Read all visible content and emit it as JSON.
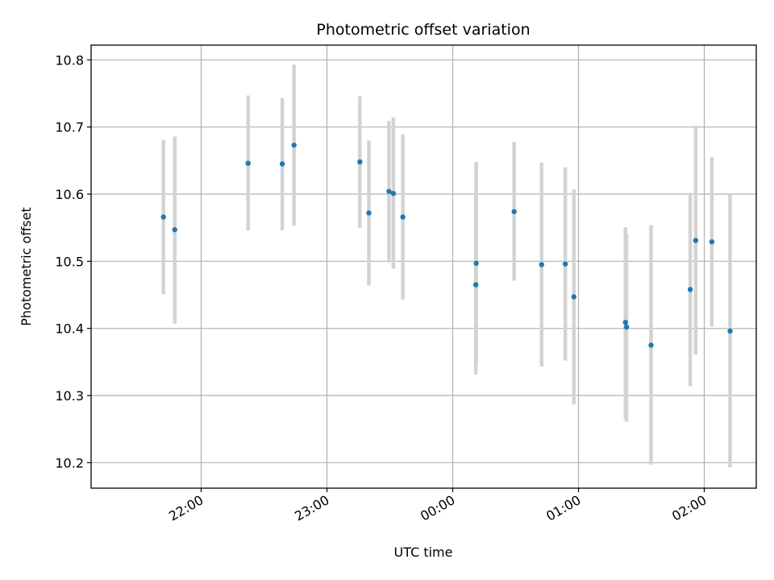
{
  "chart_data": {
    "type": "scatter",
    "title": "Photometric offset variation",
    "xlabel": "UTC time",
    "ylabel": "Photometric offset",
    "grid": true,
    "x_ticks": [
      "22:00",
      "23:00",
      "00:00",
      "01:00",
      "02:00"
    ],
    "x_tick_minutes": [
      1320,
      1380,
      1440,
      1500,
      1560
    ],
    "y_ticks": [
      "10.2",
      "10.3",
      "10.4",
      "10.5",
      "10.6",
      "10.7",
      "10.8"
    ],
    "y_tick_values": [
      10.2,
      10.3,
      10.4,
      10.5,
      10.6,
      10.7,
      10.8
    ],
    "xlim_minutes": [
      1267.5,
      1584.8
    ],
    "ylim": [
      10.162,
      10.822
    ],
    "series": [
      {
        "name": "",
        "color": "#1f77b4",
        "errorbar_color": "#d3d3d3",
        "points": [
          {
            "t": "21:42",
            "x": 1302.0,
            "y": 10.566,
            "ylo": 10.451,
            "yhi": 10.681
          },
          {
            "t": "21:47",
            "x": 1307.4,
            "y": 10.547,
            "ylo": 10.407,
            "yhi": 10.686
          },
          {
            "t": "22:22",
            "x": 1342.4,
            "y": 10.646,
            "ylo": 10.546,
            "yhi": 10.747
          },
          {
            "t": "22:39",
            "x": 1358.7,
            "y": 10.645,
            "ylo": 10.546,
            "yhi": 10.743
          },
          {
            "t": "22:44",
            "x": 1364.3,
            "y": 10.673,
            "ylo": 10.553,
            "yhi": 10.793
          },
          {
            "t": "23:16",
            "x": 1395.7,
            "y": 10.648,
            "ylo": 10.55,
            "yhi": 10.746
          },
          {
            "t": "23:20",
            "x": 1400.0,
            "y": 10.572,
            "ylo": 10.464,
            "yhi": 10.68
          },
          {
            "t": "23:30",
            "x": 1409.6,
            "y": 10.604,
            "ylo": 10.498,
            "yhi": 10.709
          },
          {
            "t": "23:32",
            "x": 1411.7,
            "y": 10.601,
            "ylo": 10.489,
            "yhi": 10.714
          },
          {
            "t": "23:36",
            "x": 1416.2,
            "y": 10.566,
            "ylo": 10.443,
            "yhi": 10.689
          },
          {
            "t": "00:11",
            "x": 1451.2,
            "y": 10.497,
            "ylo": 10.346,
            "yhi": 10.648
          },
          {
            "t": "00:11",
            "x": 1451.0,
            "y": 10.465,
            "ylo": 10.331,
            "yhi": 10.598
          },
          {
            "t": "00:29",
            "x": 1469.3,
            "y": 10.574,
            "ylo": 10.471,
            "yhi": 10.678
          },
          {
            "t": "00:42",
            "x": 1482.4,
            "y": 10.495,
            "ylo": 10.343,
            "yhi": 10.647
          },
          {
            "t": "00:54",
            "x": 1493.7,
            "y": 10.496,
            "ylo": 10.352,
            "yhi": 10.64
          },
          {
            "t": "00:58",
            "x": 1497.8,
            "y": 10.447,
            "ylo": 10.287,
            "yhi": 10.607
          },
          {
            "t": "01:22",
            "x": 1522.4,
            "y": 10.409,
            "ylo": 10.266,
            "yhi": 10.551
          },
          {
            "t": "01:23",
            "x": 1522.9,
            "y": 10.402,
            "ylo": 10.261,
            "yhi": 10.541
          },
          {
            "t": "01:35",
            "x": 1534.6,
            "y": 10.375,
            "ylo": 10.197,
            "yhi": 10.554
          },
          {
            "t": "01:53",
            "x": 1553.3,
            "y": 10.458,
            "ylo": 10.314,
            "yhi": 10.602
          },
          {
            "t": "01:56",
            "x": 1555.9,
            "y": 10.531,
            "ylo": 10.361,
            "yhi": 10.702
          },
          {
            "t": "02:04",
            "x": 1563.6,
            "y": 10.529,
            "ylo": 10.403,
            "yhi": 10.655
          },
          {
            "t": "02:12",
            "x": 1572.3,
            "y": 10.396,
            "ylo": 10.193,
            "yhi": 10.6
          }
        ]
      }
    ]
  }
}
